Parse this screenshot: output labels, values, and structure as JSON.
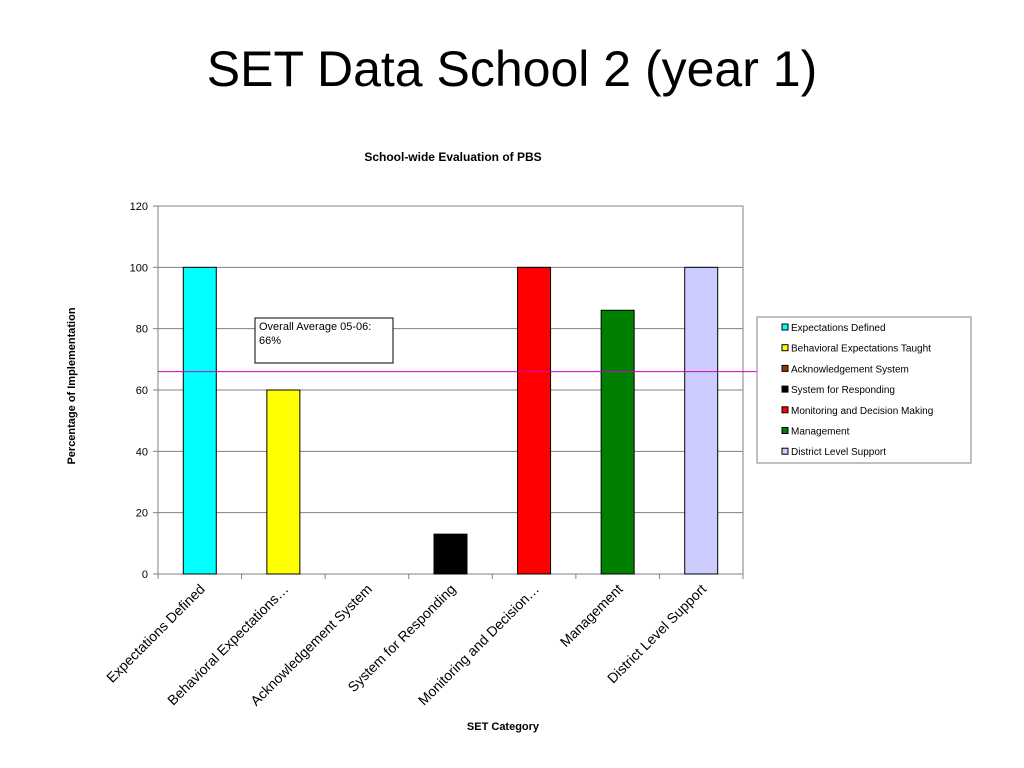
{
  "slide": {
    "title": "SET Data School 2 (year 1)"
  },
  "chart_data": {
    "type": "bar",
    "title": "School-wide Evaluation of PBS",
    "xlabel": "SET Category",
    "ylabel": "Percentage of Implementation",
    "ylim": [
      0,
      120
    ],
    "yticks": [
      0,
      20,
      40,
      60,
      80,
      100,
      120
    ],
    "grid": true,
    "legend_position": "right",
    "categories": [
      "Expectations Defined",
      "Behavioral Expectations Taught",
      "Acknowledgement System",
      "System for Responding",
      "Monitoring and Decision Making",
      "Management",
      "District Level Support"
    ],
    "tick_labels": [
      "Expectations Defined",
      "Behavioral Expectations…",
      "Acknowledgement System",
      "System for Responding",
      "Monitoring and Decision…",
      "Management",
      "District Level Support"
    ],
    "values": [
      100,
      60,
      0,
      13,
      100,
      86,
      100
    ],
    "colors": [
      "#00ffff",
      "#ffff00",
      "#993300",
      "#000000",
      "#ff0000",
      "#008000",
      "#ccccff"
    ],
    "reference_line": {
      "value": 66,
      "color": "#cc00cc"
    },
    "annotation": {
      "lines": [
        "Overall Average 05-06:",
        "66%"
      ]
    }
  }
}
